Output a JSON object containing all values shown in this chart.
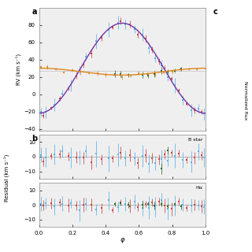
{
  "title_a": "a",
  "title_b": "b",
  "title_c": "c",
  "ylabel_a": "RV (km s⁻¹)",
  "ylabel_b": "Residual (km s⁻¹)",
  "xlabel": "φ",
  "ylabel_c": "Normalized flux",
  "ylim_a": [
    -42,
    100
  ],
  "ylim_b1": [
    -15,
    15
  ],
  "ylim_b2": [
    -15,
    15
  ],
  "yticks_a": [
    -40,
    -20,
    0,
    20,
    40,
    60,
    80
  ],
  "yticks_b": [
    -10,
    0,
    10
  ],
  "xlim": [
    0.0,
    1.0
  ],
  "label_bstar": "B star",
  "label_ha": "Hα",
  "gamma": 30.0,
  "K_purple": 52.0,
  "gamma_orange": 26.0,
  "K_orange": 4.0,
  "bg_color": "#efefef",
  "colors": {
    "blue": "#5ab4e5",
    "red": "#cc4444",
    "green": "#2d6a2d",
    "purple": "#7733aa",
    "orange": "#dd8822"
  }
}
